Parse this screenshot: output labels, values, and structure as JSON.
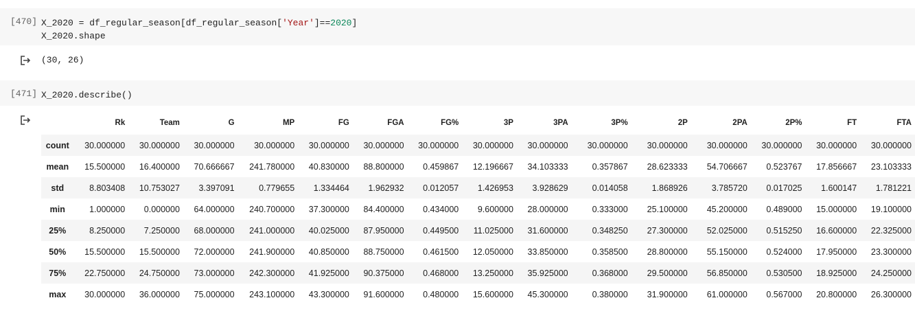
{
  "cells": [
    {
      "exec_count": "[470]",
      "code_line1_a": "X_2020 = df_regular_season[df_regular_season[",
      "code_line1_str": "'Year'",
      "code_line1_b": "]==",
      "code_line1_num": "2020",
      "code_line1_c": "]",
      "code_line2": "X_2020.shape",
      "output": "(30, 26)"
    },
    {
      "exec_count": "[471]",
      "code_line1": "X_2020.describe()"
    }
  ],
  "icons": {
    "output_icon": "output-arrow-icon"
  },
  "table": {
    "columns": [
      "",
      "Rk",
      "Team",
      "G",
      "MP",
      "FG",
      "FGA",
      "FG%",
      "3P",
      "3PA",
      "3P%",
      "2P",
      "2PA",
      "2P%",
      "FT",
      "FTA"
    ],
    "rows": [
      {
        "index": "count",
        "values": [
          "30.000000",
          "30.000000",
          "30.000000",
          "30.000000",
          "30.000000",
          "30.000000",
          "30.000000",
          "30.000000",
          "30.000000",
          "30.000000",
          "30.000000",
          "30.000000",
          "30.000000",
          "30.000000",
          "30.000000"
        ]
      },
      {
        "index": "mean",
        "values": [
          "15.500000",
          "16.400000",
          "70.666667",
          "241.780000",
          "40.830000",
          "88.800000",
          "0.459867",
          "12.196667",
          "34.103333",
          "0.357867",
          "28.623333",
          "54.706667",
          "0.523767",
          "17.856667",
          "23.103333"
        ]
      },
      {
        "index": "std",
        "values": [
          "8.803408",
          "10.753027",
          "3.397091",
          "0.779655",
          "1.334464",
          "1.962932",
          "0.012057",
          "1.426953",
          "3.928629",
          "0.014058",
          "1.868926",
          "3.785720",
          "0.017025",
          "1.600147",
          "1.781221"
        ]
      },
      {
        "index": "min",
        "values": [
          "1.000000",
          "0.000000",
          "64.000000",
          "240.700000",
          "37.300000",
          "84.400000",
          "0.434000",
          "9.600000",
          "28.000000",
          "0.333000",
          "25.100000",
          "45.200000",
          "0.489000",
          "15.000000",
          "19.100000"
        ]
      },
      {
        "index": "25%",
        "values": [
          "8.250000",
          "7.250000",
          "68.000000",
          "241.000000",
          "40.025000",
          "87.950000",
          "0.449500",
          "11.025000",
          "31.600000",
          "0.348250",
          "27.300000",
          "52.025000",
          "0.515250",
          "16.600000",
          "22.325000"
        ]
      },
      {
        "index": "50%",
        "values": [
          "15.500000",
          "15.500000",
          "72.000000",
          "241.900000",
          "40.850000",
          "88.750000",
          "0.461500",
          "12.050000",
          "33.850000",
          "0.358500",
          "28.800000",
          "55.150000",
          "0.524000",
          "17.950000",
          "23.300000"
        ]
      },
      {
        "index": "75%",
        "values": [
          "22.750000",
          "24.750000",
          "73.000000",
          "242.300000",
          "41.925000",
          "90.375000",
          "0.468000",
          "13.250000",
          "35.925000",
          "0.368000",
          "29.500000",
          "56.850000",
          "0.530500",
          "18.925000",
          "24.250000"
        ]
      },
      {
        "index": "max",
        "values": [
          "30.000000",
          "36.000000",
          "75.000000",
          "243.100000",
          "43.300000",
          "91.600000",
          "0.480000",
          "15.600000",
          "45.300000",
          "0.380000",
          "31.900000",
          "61.000000",
          "0.567000",
          "20.800000",
          "26.300000"
        ]
      }
    ]
  }
}
